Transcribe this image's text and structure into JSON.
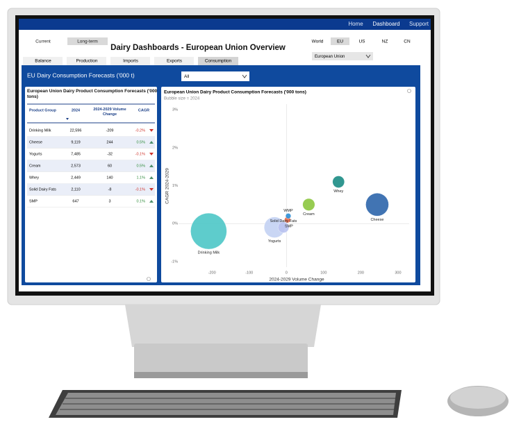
{
  "nav": [
    "Home",
    "Dashboard",
    "Support"
  ],
  "header": {
    "title": "Dairy Dashboards - European Union Overview",
    "horizon": [
      "Current",
      "Long-term"
    ],
    "regions": [
      "World",
      "EU",
      "US",
      "NZ",
      "CN"
    ],
    "region_select": "European Union"
  },
  "tabs": [
    "Balance",
    "Production",
    "Imports",
    "Exports",
    "Consumption"
  ],
  "panel": {
    "title": "EU Dairy Consumption Forecasts ('000 t)",
    "filter": "All"
  },
  "table": {
    "title": "European Union Dairy Product Consumption Forecasts ('000 tons)",
    "headers": [
      "Product Group",
      "2024",
      "2024-2029 Volume Change",
      "CAGR"
    ],
    "rows": [
      [
        "Drinking Milk",
        "22,596",
        "-209",
        "-0.2%"
      ],
      [
        "Cheese",
        "9,119",
        "244",
        "0.5%"
      ],
      [
        "Yogurts",
        "7,485",
        "-32",
        "-0.1%"
      ],
      [
        "Cream",
        "2,573",
        "60",
        "0.5%"
      ],
      [
        "Whey",
        "2,449",
        "140",
        "1.1%"
      ],
      [
        "Solid Dairy Fats",
        "2,110",
        "-8",
        "-0.1%"
      ],
      [
        "SMP",
        "647",
        "3",
        "0.1%"
      ]
    ]
  },
  "chart_data": {
    "type": "bubble",
    "title": "European Union Dairy Product Consumption Forecasts ('000 tons)",
    "subtitle": "Bubble size = 2024",
    "xlabel": "2024-2029 Volume Change",
    "ylabel": "CAGR 2024-2029",
    "categories": [
      "Drinking Milk",
      "Cheese",
      "Yogurts",
      "Cream",
      "Whey",
      "Solid Dairy Fats",
      "SMP",
      "WMP"
    ],
    "x": [
      -209,
      244,
      -32,
      60,
      140,
      -8,
      3,
      5
    ],
    "values": [
      -0.2,
      0.5,
      -0.1,
      0.5,
      1.1,
      -0.1,
      0.1,
      0.2
    ],
    "sizes": [
      22596,
      9119,
      7485,
      2573,
      2449,
      2110,
      647,
      500
    ],
    "colors": [
      "#4cc6c6",
      "#2c65ab",
      "#c3d2f3",
      "#8cc63f",
      "#1b8c84",
      "#b9c2f0",
      "#e8694a",
      "#2e8fd6"
    ],
    "xlim": [
      -290,
      330
    ],
    "ylim": [
      -1.15,
      3.15
    ],
    "xticks": [
      -200,
      -100,
      0,
      100,
      200,
      300
    ],
    "yticks": [
      {
        "value": -1,
        "label": "-1%"
      },
      {
        "value": 0,
        "label": "0%"
      },
      {
        "value": 1,
        "label": "1%"
      },
      {
        "value": 2,
        "label": "2%"
      },
      {
        "value": 3,
        "label": "3%"
      }
    ]
  }
}
